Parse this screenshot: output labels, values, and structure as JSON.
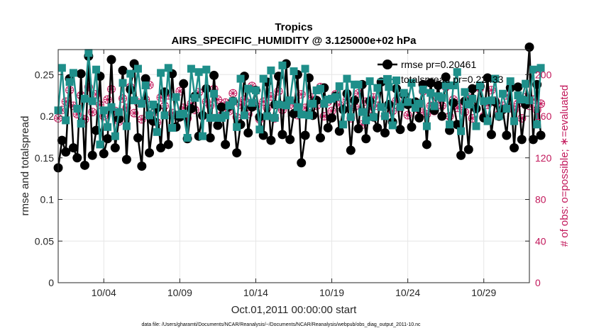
{
  "chart_data": {
    "type": "line",
    "title": "Tropics",
    "subtitle": "AIRS_SPECIFIC_HUMIDITY @ 3.125000e+02 hPa",
    "xlabel": "Oct.01,2011 00:00:00 start",
    "ylabel": "rmse and totalspread",
    "ylabel_right": "# of obs: o=possible; ∗=evaluated",
    "xticks": [
      {
        "day": 4,
        "label": "10/04"
      },
      {
        "day": 9,
        "label": "10/09"
      },
      {
        "day": 14,
        "label": "10/14"
      },
      {
        "day": 19,
        "label": "10/19"
      },
      {
        "day": 24,
        "label": "10/24"
      },
      {
        "day": 29,
        "label": "10/29"
      }
    ],
    "xlim_days": [
      1.0,
      32.0
    ],
    "yticks": [
      "0",
      "0.05",
      "0.1",
      "0.15",
      "0.2",
      "0.25"
    ],
    "ylim": [
      0,
      0.28
    ],
    "yticks_right": [
      "0",
      "40",
      "80",
      "120",
      "160",
      "200"
    ],
    "ylim_right": [
      0,
      224
    ],
    "grid": true,
    "legend_position": "top-right",
    "series": [
      {
        "name": "rmse pr=0.20461",
        "axis": "left",
        "color": "#000000",
        "marker": "filled-circle",
        "x_day_start": 1.0,
        "x_day_step": 0.25,
        "values": [
          0.138,
          0.171,
          0.157,
          0.245,
          0.162,
          0.15,
          0.251,
          0.141,
          0.272,
          0.153,
          0.183,
          0.248,
          0.155,
          0.173,
          0.268,
          0.162,
          0.197,
          0.255,
          0.148,
          0.232,
          0.263,
          0.174,
          0.14,
          0.245,
          0.156,
          0.194,
          0.21,
          0.162,
          0.229,
          0.166,
          0.251,
          0.187,
          0.199,
          0.239,
          0.173,
          0.209,
          0.224,
          0.176,
          0.201,
          0.233,
          0.174,
          0.249,
          0.189,
          0.211,
          0.166,
          0.212,
          0.218,
          0.156,
          0.19,
          0.248,
          0.18,
          0.211,
          0.231,
          0.199,
          0.177,
          0.241,
          0.171,
          0.214,
          0.248,
          0.178,
          0.263,
          0.172,
          0.203,
          0.25,
          0.144,
          0.177,
          0.246,
          0.201,
          0.219,
          0.174,
          0.234,
          0.186,
          0.198,
          0.224,
          0.182,
          0.208,
          0.227,
          0.159,
          0.219,
          0.185,
          0.238,
          0.173,
          0.218,
          0.199,
          0.186,
          0.241,
          0.18,
          0.214,
          0.193,
          0.233,
          0.184,
          0.226,
          0.214,
          0.187,
          0.217,
          0.198,
          0.238,
          0.166,
          0.24,
          0.207,
          0.237,
          0.2,
          0.247,
          0.183,
          0.216,
          0.19,
          0.153,
          0.218,
          0.16,
          0.233,
          0.209,
          0.236,
          0.198,
          0.246,
          0.178,
          0.217,
          0.2,
          0.208,
          0.177,
          0.234,
          0.162,
          0.235,
          0.172,
          0.214,
          0.283,
          0.172,
          0.238,
          0.177
        ]
      },
      {
        "name": "totalspread pr=0.22433",
        "axis": "left",
        "color": "#1f8f8a",
        "marker": "filled-square",
        "x_day_start": 1.0,
        "x_day_step": 0.25,
        "values": [
          0.207,
          0.258,
          0.195,
          0.241,
          0.252,
          0.209,
          0.191,
          0.221,
          0.276,
          0.218,
          0.256,
          0.166,
          0.207,
          0.187,
          0.211,
          0.176,
          0.205,
          0.24,
          0.188,
          0.251,
          0.219,
          0.257,
          0.215,
          0.237,
          0.201,
          0.214,
          0.181,
          0.252,
          0.201,
          0.258,
          0.186,
          0.223,
          0.202,
          0.203,
          0.174,
          0.257,
          0.222,
          0.253,
          0.176,
          0.256,
          0.198,
          0.227,
          0.198,
          0.198,
          0.201,
          0.213,
          0.218,
          0.187,
          0.245,
          0.201,
          0.233,
          0.216,
          0.231,
          0.184,
          0.245,
          0.2,
          0.255,
          0.198,
          0.214,
          0.261,
          0.213,
          0.219,
          0.254,
          0.211,
          0.202,
          0.257,
          0.201,
          0.215,
          0.231,
          0.233,
          0.215,
          0.22,
          0.221,
          0.223,
          0.236,
          0.19,
          0.245,
          0.199,
          0.238,
          0.238,
          0.205,
          0.195,
          0.242,
          0.199,
          0.234,
          0.211,
          0.2,
          0.235,
          0.189,
          0.243,
          0.211,
          0.228,
          0.217,
          0.24,
          0.21,
          0.215,
          0.232,
          0.188,
          0.228,
          0.212,
          0.224,
          0.222,
          0.237,
          0.19,
          0.237,
          0.253,
          0.182,
          0.229,
          0.214,
          0.221,
          0.188,
          0.237,
          0.218,
          0.194,
          0.219,
          0.245,
          0.2,
          0.227,
          0.209,
          0.242,
          0.194,
          0.225,
          0.22,
          0.239,
          0.219,
          0.256,
          0.19,
          0.258
        ]
      },
      {
        "name": "possible",
        "axis": "right",
        "color": "#c2185b",
        "marker": "open-circle",
        "x_day_start": 1.0,
        "x_day_step": 0.25,
        "values": [
          158,
          166,
          174,
          185,
          170,
          162,
          180,
          157,
          188,
          164,
          181,
          171,
          160,
          176,
          186,
          165,
          155,
          177,
          168,
          188,
          163,
          173,
          157,
          176,
          190,
          163,
          154,
          178,
          170,
          180,
          163,
          161,
          184,
          168,
          158,
          172,
          166,
          183,
          160,
          174,
          170,
          186,
          176,
          161,
          173,
          165,
          182,
          159,
          171,
          176,
          162,
          189,
          170,
          157,
          174,
          168,
          179,
          158,
          184,
          166,
          172,
          175,
          170,
          161,
          181,
          168,
          163,
          178,
          170,
          188,
          160,
          174,
          165,
          181,
          171,
          166,
          176,
          158,
          169,
          182,
          152,
          174,
          167,
          178,
          170,
          193,
          160,
          171,
          165,
          175,
          168,
          180,
          161,
          172,
          174,
          166,
          184,
          162,
          170,
          165,
          177,
          170,
          188,
          160,
          176,
          168,
          172,
          164,
          178,
          158,
          167,
          187,
          160,
          171,
          185,
          175,
          162,
          170,
          180,
          168,
          166,
          172,
          158,
          178,
          170,
          176,
          166,
          172
        ]
      },
      {
        "name": "evaluated",
        "axis": "right",
        "color": "#c2185b",
        "marker": "asterisk",
        "x_day_start": 1.0,
        "x_day_step": 0.25,
        "values": [
          158,
          166,
          174,
          185,
          170,
          162,
          180,
          157,
          188,
          164,
          181,
          171,
          160,
          176,
          186,
          165,
          155,
          177,
          168,
          188,
          163,
          173,
          157,
          176,
          190,
          163,
          154,
          178,
          170,
          180,
          163,
          161,
          184,
          168,
          158,
          172,
          166,
          183,
          160,
          174,
          170,
          186,
          176,
          161,
          173,
          165,
          182,
          159,
          171,
          176,
          162,
          189,
          170,
          157,
          174,
          168,
          179,
          158,
          184,
          166,
          172,
          175,
          170,
          161,
          181,
          168,
          163,
          178,
          170,
          188,
          160,
          174,
          165,
          181,
          171,
          166,
          176,
          158,
          169,
          182,
          152,
          174,
          167,
          178,
          170,
          193,
          160,
          171,
          165,
          175,
          168,
          180,
          161,
          172,
          174,
          166,
          184,
          162,
          170,
          165,
          177,
          170,
          188,
          160,
          176,
          168,
          172,
          164,
          178,
          158,
          167,
          187,
          160,
          171,
          185,
          175,
          162,
          170,
          180,
          168,
          166,
          172,
          158,
          178,
          170,
          176,
          166,
          172
        ]
      }
    ],
    "legend": [
      {
        "label": "rmse pr=0.20461"
      },
      {
        "label": "totalspread pr=0.22433"
      }
    ]
  },
  "footnote": "data file: /Users/gharamti/Documents/NCAR/Reanalysis/~/Documents/NCAR/Reanalysis/webpub/obs_diag_output_2011-10.nc",
  "colors": {
    "rmse": "#000000",
    "spread": "#1f8f8a",
    "obs": "#c2185b",
    "grid": "#e6e6e6",
    "axis": "#262626"
  }
}
